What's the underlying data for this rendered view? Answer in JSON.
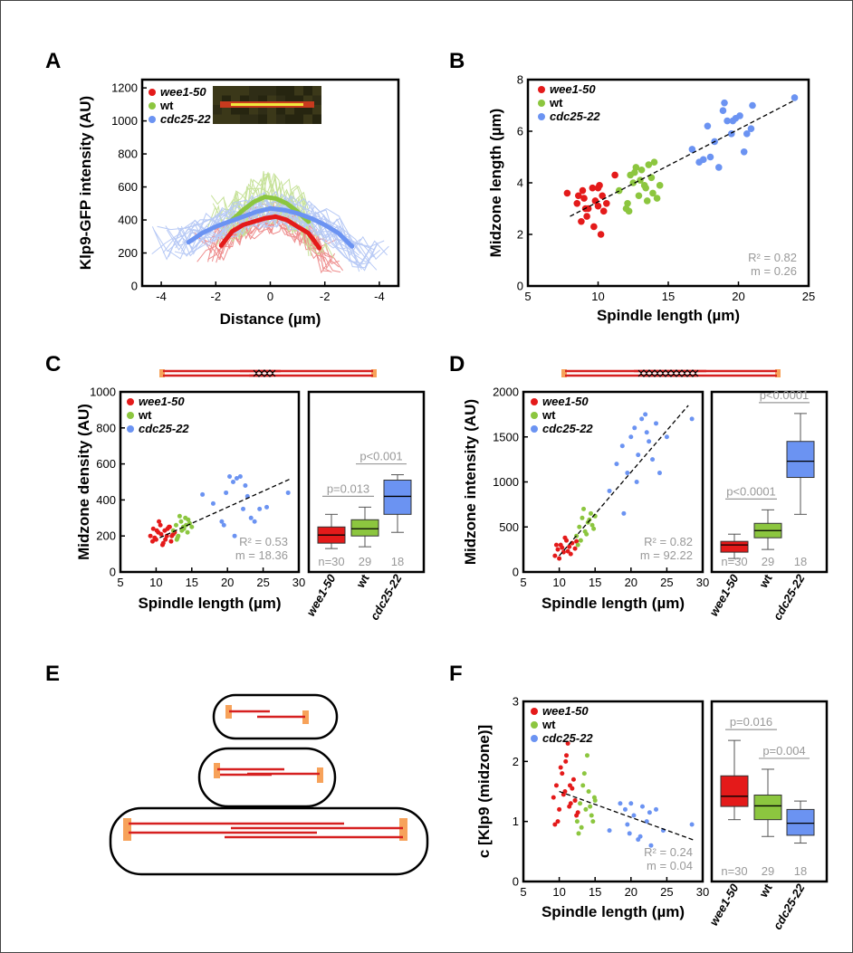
{
  "colors": {
    "wee1": "#e41a1a",
    "wt": "#8cc63f",
    "cdc25": "#6b93f2",
    "pole": "#f7a25a",
    "gray": "#999999"
  },
  "panels": {
    "A": "A",
    "B": "B",
    "C": "C",
    "D": "D",
    "E": "E",
    "F": "F"
  },
  "legend": {
    "wee1": "wee1-50",
    "wt": "wt",
    "cdc25": "cdc25-22"
  },
  "box_categories": [
    "wee1-50",
    "wt",
    "cdc25-22"
  ],
  "chart_data": [
    {
      "panel": "A",
      "type": "line",
      "xlabel": "Distance (µm)",
      "ylabel": "Klp9-GFP intensity (AU)",
      "xticks": [
        "-4",
        "-2",
        "0",
        "-2",
        "-4"
      ],
      "xlim": [
        -4.7,
        4.7
      ],
      "ylim": [
        0,
        1250
      ],
      "yticks": [
        0,
        200,
        400,
        600,
        800,
        1000,
        1200
      ],
      "series": [
        {
          "name": "wee1-50",
          "x": [
            -1.8,
            -1.4,
            -1.0,
            -0.6,
            -0.2,
            0.2,
            0.6,
            1.0,
            1.4,
            1.8
          ],
          "y": [
            245,
            330,
            370,
            390,
            410,
            420,
            400,
            360,
            320,
            230
          ]
        },
        {
          "name": "wt",
          "x": [
            -1.4,
            -1.0,
            -0.6,
            -0.2,
            0.2,
            0.6,
            1.0,
            1.4
          ],
          "y": [
            400,
            460,
            510,
            540,
            530,
            500,
            450,
            390
          ]
        },
        {
          "name": "cdc25-22",
          "x": [
            -3.0,
            -2.5,
            -2.0,
            -1.5,
            -1.0,
            -0.5,
            0.0,
            0.5,
            1.0,
            1.5,
            2.0,
            2.5,
            3.0
          ],
          "y": [
            265,
            320,
            360,
            390,
            420,
            450,
            470,
            460,
            440,
            410,
            370,
            320,
            240
          ]
        }
      ]
    },
    {
      "panel": "B",
      "type": "scatter",
      "xlabel": "Spindle length (µm)",
      "ylabel": "Midzone length (µm)",
      "xlim": [
        5,
        25
      ],
      "ylim": [
        0,
        8
      ],
      "xticks": [
        5,
        10,
        15,
        20,
        25
      ],
      "yticks": [
        0,
        2,
        4,
        6,
        8
      ],
      "annotation": {
        "r2": "R² = 0.82",
        "m": "m = 0.26"
      },
      "fit": {
        "x": [
          8,
          24
        ],
        "y": [
          2.7,
          7.2
        ]
      },
      "series": [
        {
          "name": "wee1-50",
          "x": [
            7.8,
            8.5,
            9.0,
            9.3,
            9.6,
            9.8,
            10.1,
            10.3,
            8.8,
            9.2,
            10.0,
            10.4,
            8.9,
            9.7,
            10.2,
            10.6,
            11.2,
            9.1,
            8.6,
            10.0
          ],
          "y": [
            3.6,
            3.2,
            3.4,
            3.0,
            3.8,
            3.3,
            3.9,
            3.5,
            2.5,
            2.7,
            3.1,
            2.9,
            3.7,
            2.3,
            2.0,
            3.2,
            4.3,
            3.0,
            3.5,
            3.8
          ]
        },
        {
          "name": "wt",
          "x": [
            11.5,
            12.0,
            12.3,
            12.7,
            13.0,
            13.3,
            13.6,
            13.9,
            14.2,
            12.1,
            12.5,
            13.1,
            13.4,
            13.8,
            14.0,
            12.9,
            12.2,
            13.5,
            14.4,
            12.6
          ],
          "y": [
            3.7,
            3.0,
            4.3,
            4.6,
            4.1,
            3.9,
            4.7,
            3.6,
            3.4,
            3.2,
            4.0,
            4.5,
            3.8,
            4.2,
            4.8,
            3.5,
            2.9,
            3.3,
            3.9,
            4.4
          ]
        },
        {
          "name": "cdc25-22",
          "x": [
            16.7,
            17.2,
            17.8,
            18.3,
            18.6,
            18.9,
            19.2,
            19.5,
            19.8,
            20.1,
            20.4,
            20.9,
            21.0,
            18.0,
            19.0,
            17.5,
            24.0,
            20.6,
            19.6
          ],
          "y": [
            5.3,
            4.8,
            6.2,
            5.6,
            4.6,
            6.8,
            6.4,
            5.9,
            6.5,
            6.6,
            5.2,
            6.1,
            7.0,
            5.0,
            7.1,
            4.9,
            7.3,
            5.9,
            6.4
          ]
        }
      ]
    },
    {
      "panel": "C",
      "type": "scatter",
      "xlabel": "Spindle length (µm)",
      "ylabel": "Midzone density (AU)",
      "xlim": [
        5,
        30
      ],
      "ylim": [
        0,
        1000
      ],
      "xticks": [
        5,
        10,
        15,
        20,
        25,
        30
      ],
      "yticks": [
        0,
        200,
        400,
        600,
        800,
        1000
      ],
      "annotation": {
        "r2": "R² = 0.53",
        "m": "m = 18.36"
      },
      "fit": {
        "x": [
          10.5,
          29
        ],
        "y": [
          190,
          520
        ]
      },
      "series": [
        {
          "name": "wee1-50",
          "x": [
            9.2,
            9.6,
            10.0,
            10.3,
            10.6,
            10.9,
            11.2,
            11.5,
            11.8,
            12.1,
            12.4,
            9.8,
            10.4,
            11.0,
            11.6,
            12.2,
            10.1,
            10.7,
            11.3,
            11.9,
            9.5,
            12.6
          ],
          "y": [
            200,
            240,
            180,
            220,
            260,
            150,
            230,
            200,
            250,
            170,
            210,
            190,
            280,
            160,
            240,
            200,
            230,
            210,
            180,
            250,
            170,
            220
          ]
        },
        {
          "name": "wt",
          "x": [
            12.4,
            12.8,
            13.1,
            13.5,
            13.8,
            14.1,
            14.4,
            14.7,
            13.0,
            13.3,
            13.9,
            14.2,
            12.9,
            13.6,
            14.5,
            15.0
          ],
          "y": [
            230,
            260,
            200,
            280,
            250,
            300,
            220,
            270,
            190,
            310,
            240,
            260,
            180,
            230,
            290,
            250
          ]
        },
        {
          "name": "cdc25-22",
          "x": [
            16.5,
            18.0,
            19.2,
            19.8,
            20.3,
            20.8,
            21.3,
            21.8,
            22.2,
            22.8,
            23.3,
            23.8,
            24.5,
            21.0,
            19.5,
            25.5,
            28.5,
            22.5
          ],
          "y": [
            430,
            380,
            280,
            440,
            530,
            500,
            520,
            530,
            350,
            420,
            300,
            280,
            350,
            200,
            260,
            360,
            440,
            480
          ]
        }
      ]
    },
    {
      "panel": "C-box",
      "type": "box",
      "categories": [
        "wee1-50",
        "wt",
        "cdc25-22"
      ],
      "ylim": [
        0,
        1000
      ],
      "counts": [
        "n=30",
        "29",
        "18"
      ],
      "pvalues": [
        "p=0.013",
        "p<0.001"
      ],
      "boxes": [
        {
          "min": 130,
          "q1": 160,
          "median": 205,
          "q3": 250,
          "max": 320
        },
        {
          "min": 140,
          "q1": 200,
          "median": 240,
          "q3": 290,
          "max": 360
        },
        {
          "min": 220,
          "q1": 320,
          "median": 420,
          "q3": 510,
          "max": 540
        }
      ]
    },
    {
      "panel": "D",
      "type": "scatter",
      "xlabel": "Spindle length (µm)",
      "ylabel": "Midzone intensity (AU)",
      "xlim": [
        5,
        30
      ],
      "ylim": [
        0,
        2000
      ],
      "xticks": [
        5,
        10,
        15,
        20,
        25,
        30
      ],
      "yticks": [
        0,
        500,
        1000,
        1500,
        2000
      ],
      "annotation": {
        "r2": "R² = 0.82",
        "m": "m = 92.22"
      },
      "fit": {
        "x": [
          10,
          28
        ],
        "y": [
          180,
          1850
        ]
      },
      "series": [
        {
          "name": "wee1-50",
          "x": [
            9.4,
            9.8,
            10.2,
            10.6,
            11.0,
            11.4,
            11.8,
            12.2,
            10.0,
            10.8,
            11.6,
            12.4,
            9.6,
            10.4,
            11.2
          ],
          "y": [
            180,
            250,
            300,
            220,
            350,
            280,
            320,
            260,
            150,
            380,
            200,
            340,
            300,
            270,
            230
          ]
        },
        {
          "name": "wt",
          "x": [
            12.4,
            12.8,
            13.2,
            13.6,
            14.0,
            14.4,
            14.8,
            13.0,
            13.4,
            13.8,
            14.2,
            15.0,
            12.6,
            14.6
          ],
          "y": [
            400,
            500,
            600,
            450,
            550,
            650,
            480,
            350,
            700,
            420,
            580,
            620,
            300,
            520
          ]
        },
        {
          "name": "cdc25-22",
          "x": [
            17.0,
            18.0,
            18.8,
            19.5,
            20.0,
            20.5,
            21.0,
            21.5,
            22.0,
            22.5,
            23.0,
            23.5,
            24.0,
            19.0,
            20.8,
            25.0,
            28.5,
            22.2
          ],
          "y": [
            900,
            1200,
            1400,
            1100,
            1500,
            1600,
            1300,
            1700,
            1750,
            1450,
            1250,
            1650,
            1100,
            650,
            1000,
            1500,
            1700,
            1550
          ]
        }
      ]
    },
    {
      "panel": "D-box",
      "type": "box",
      "categories": [
        "wee1-50",
        "wt",
        "cdc25-22"
      ],
      "ylim": [
        0,
        2000
      ],
      "counts": [
        "n=30",
        "29",
        "18"
      ],
      "pvalues": [
        "p<0.0001",
        "p<0.0001"
      ],
      "boxes": [
        {
          "min": 150,
          "q1": 220,
          "median": 300,
          "q3": 340,
          "max": 420
        },
        {
          "min": 250,
          "q1": 380,
          "median": 460,
          "q3": 540,
          "max": 690
        },
        {
          "min": 640,
          "q1": 1050,
          "median": 1230,
          "q3": 1450,
          "max": 1760
        }
      ]
    },
    {
      "panel": "F",
      "type": "scatter",
      "xlabel": "Spindle length (µm)",
      "ylabel": "c [Klp9 (midzone)]",
      "xlim": [
        5,
        30
      ],
      "ylim": [
        0,
        3
      ],
      "xticks": [
        5,
        10,
        15,
        20,
        25,
        30
      ],
      "yticks": [
        0,
        1,
        2,
        3
      ],
      "annotation": {
        "r2": "R² = 0.24",
        "m": "m = 0.04"
      },
      "fit": {
        "x": [
          10,
          29
        ],
        "y": [
          1.5,
          0.68
        ]
      },
      "series": [
        {
          "name": "wee1-50",
          "x": [
            9.2,
            9.6,
            10.0,
            10.4,
            10.8,
            11.2,
            11.6,
            12.0,
            12.4,
            9.8,
            10.2,
            10.6,
            11.0,
            11.4,
            11.8,
            12.2,
            9.4,
            10.9,
            11.5,
            12.6
          ],
          "y": [
            1.4,
            1.6,
            1.2,
            1.8,
            1.5,
            2.3,
            1.3,
            1.7,
            1.1,
            1.0,
            1.9,
            1.45,
            2.1,
            1.25,
            1.55,
            1.35,
            0.95,
            2.0,
            1.6,
            1.15
          ]
        },
        {
          "name": "wt",
          "x": [
            12.5,
            12.9,
            13.3,
            13.7,
            14.1,
            14.5,
            14.9,
            13.1,
            13.5,
            13.9,
            14.3,
            12.7,
            15.0,
            14.7
          ],
          "y": [
            1.0,
            1.3,
            1.6,
            1.2,
            1.5,
            1.1,
            1.4,
            0.9,
            1.8,
            2.1,
            1.25,
            0.8,
            1.35,
            1.0
          ]
        },
        {
          "name": "cdc25-22",
          "x": [
            17.0,
            18.5,
            19.2,
            19.8,
            20.4,
            21.0,
            21.6,
            22.2,
            22.8,
            23.5,
            24.5,
            20.0,
            21.3,
            19.5,
            22.6,
            28.5
          ],
          "y": [
            0.85,
            1.3,
            1.2,
            0.8,
            1.1,
            0.7,
            1.25,
            1.0,
            0.6,
            1.2,
            0.85,
            1.3,
            0.75,
            0.95,
            1.15,
            0.95
          ]
        }
      ]
    },
    {
      "panel": "F-box",
      "type": "box",
      "categories": [
        "wee1-50",
        "wt",
        "cdc25-22"
      ],
      "ylim": [
        0,
        3
      ],
      "counts": [
        "n=30",
        "29",
        "18"
      ],
      "pvalues": [
        "p=0.016",
        "p=0.004"
      ],
      "boxes": [
        {
          "min": 1.03,
          "q1": 1.25,
          "median": 1.42,
          "q3": 1.76,
          "max": 2.35
        },
        {
          "min": 0.75,
          "q1": 1.03,
          "median": 1.26,
          "q3": 1.44,
          "max": 1.87
        },
        {
          "min": 0.64,
          "q1": 0.77,
          "median": 0.97,
          "q3": 1.2,
          "max": 1.34
        }
      ]
    }
  ]
}
